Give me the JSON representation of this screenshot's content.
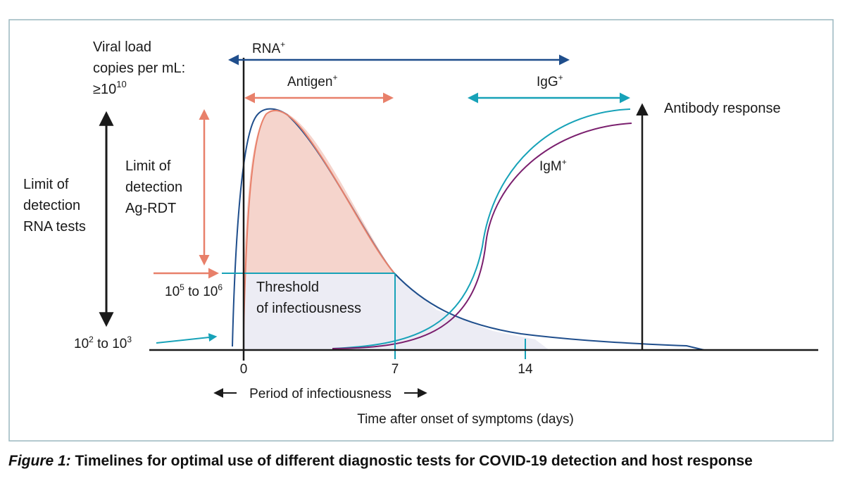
{
  "y_axis": {
    "title_lines": [
      "Viral load",
      "copies per mL:"
    ],
    "max_base": "≥10",
    "max_exp": "10"
  },
  "limits": {
    "rna_lines": [
      "Limit of",
      "detection",
      "RNA tests"
    ],
    "agrdt_lines": [
      "Limit of",
      "detection",
      "Ag-RDT"
    ],
    "threshold_lines": [
      "Threshold",
      "of infectiousness"
    ],
    "mid_level": {
      "base1": "10",
      "exp1": "5",
      "mid": " to 10",
      "exp2": "6"
    },
    "low_level": {
      "base1": "10",
      "exp1": "2",
      "mid": " to 10",
      "exp2": "3"
    }
  },
  "tests": {
    "rna": {
      "base": "RNA",
      "sup": "+"
    },
    "antigen": {
      "base": "Antigen",
      "sup": "+"
    },
    "igg": {
      "base": "IgG",
      "sup": "+"
    },
    "igm": {
      "base": "IgM",
      "sup": "+"
    },
    "antibody_response": "Antibody response"
  },
  "x_axis": {
    "ticks": [
      "0",
      "7",
      "14"
    ],
    "title": "Time after onset of symptoms (days)",
    "period_label": "Period of infectiousness"
  },
  "caption": {
    "label": "Figure 1:",
    "title": "Timelines for optimal use of different diagnostic tests for COVID-19 detection and host response"
  },
  "colors": {
    "rna": "#1f4e8c",
    "antigen": "#e8806a",
    "antigen_fill": "#f5d4cc",
    "igg": "#17a2b8",
    "igm": "#7a1f6e",
    "infectious_fill": "#ececf4",
    "frame": "#9ab7bf"
  }
}
